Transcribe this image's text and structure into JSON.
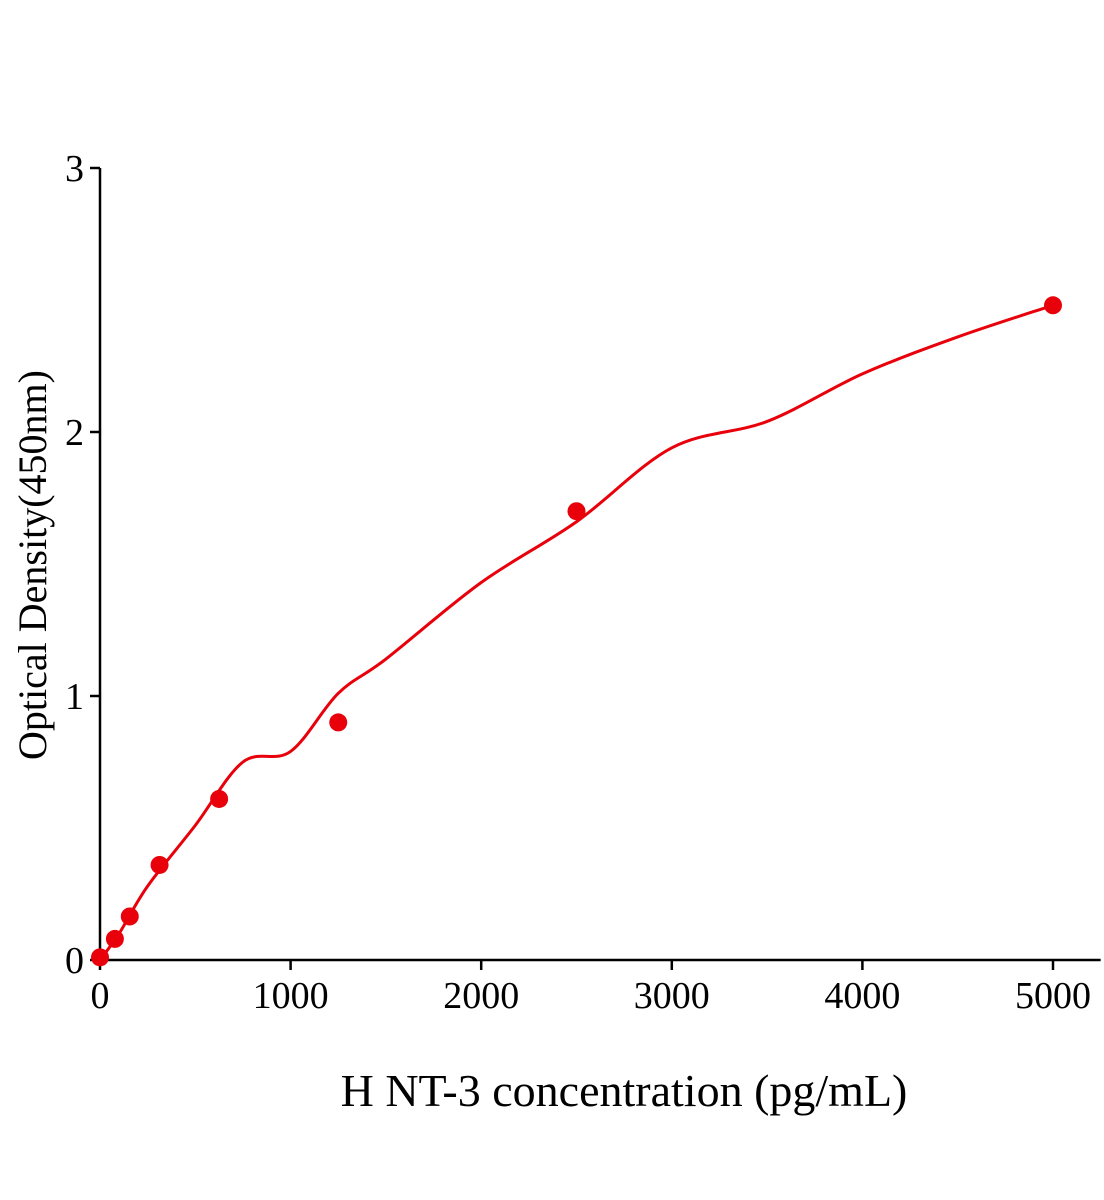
{
  "chart_data": {
    "type": "scatter",
    "title": "",
    "xlabel": "H NT-3 concentration (pg/mL)",
    "ylabel": "Optical Density(450nm)",
    "xlim": [
      0,
      5250
    ],
    "ylim": [
      0,
      3
    ],
    "xticks": [
      0,
      1000,
      2000,
      3000,
      4000,
      5000
    ],
    "yticks": [
      0,
      1,
      2,
      3
    ],
    "grid": false,
    "color": "#e8000b",
    "points": {
      "x": [
        0,
        78.125,
        156.25,
        312.5,
        625,
        1250,
        2500,
        5000
      ],
      "y": [
        0.01,
        0.08,
        0.165,
        0.36,
        0.61,
        0.9,
        1.7,
        2.48
      ]
    },
    "fit_curve": {
      "x": [
        0,
        100,
        250,
        500,
        750,
        1000,
        1250,
        1500,
        2000,
        2500,
        3000,
        3500,
        4000,
        4500,
        5000
      ],
      "y": [
        0,
        0.1,
        0.28,
        0.51,
        0.75,
        0.79,
        1.01,
        1.14,
        1.43,
        1.66,
        1.94,
        2.04,
        2.22,
        2.36,
        2.48
      ]
    }
  }
}
